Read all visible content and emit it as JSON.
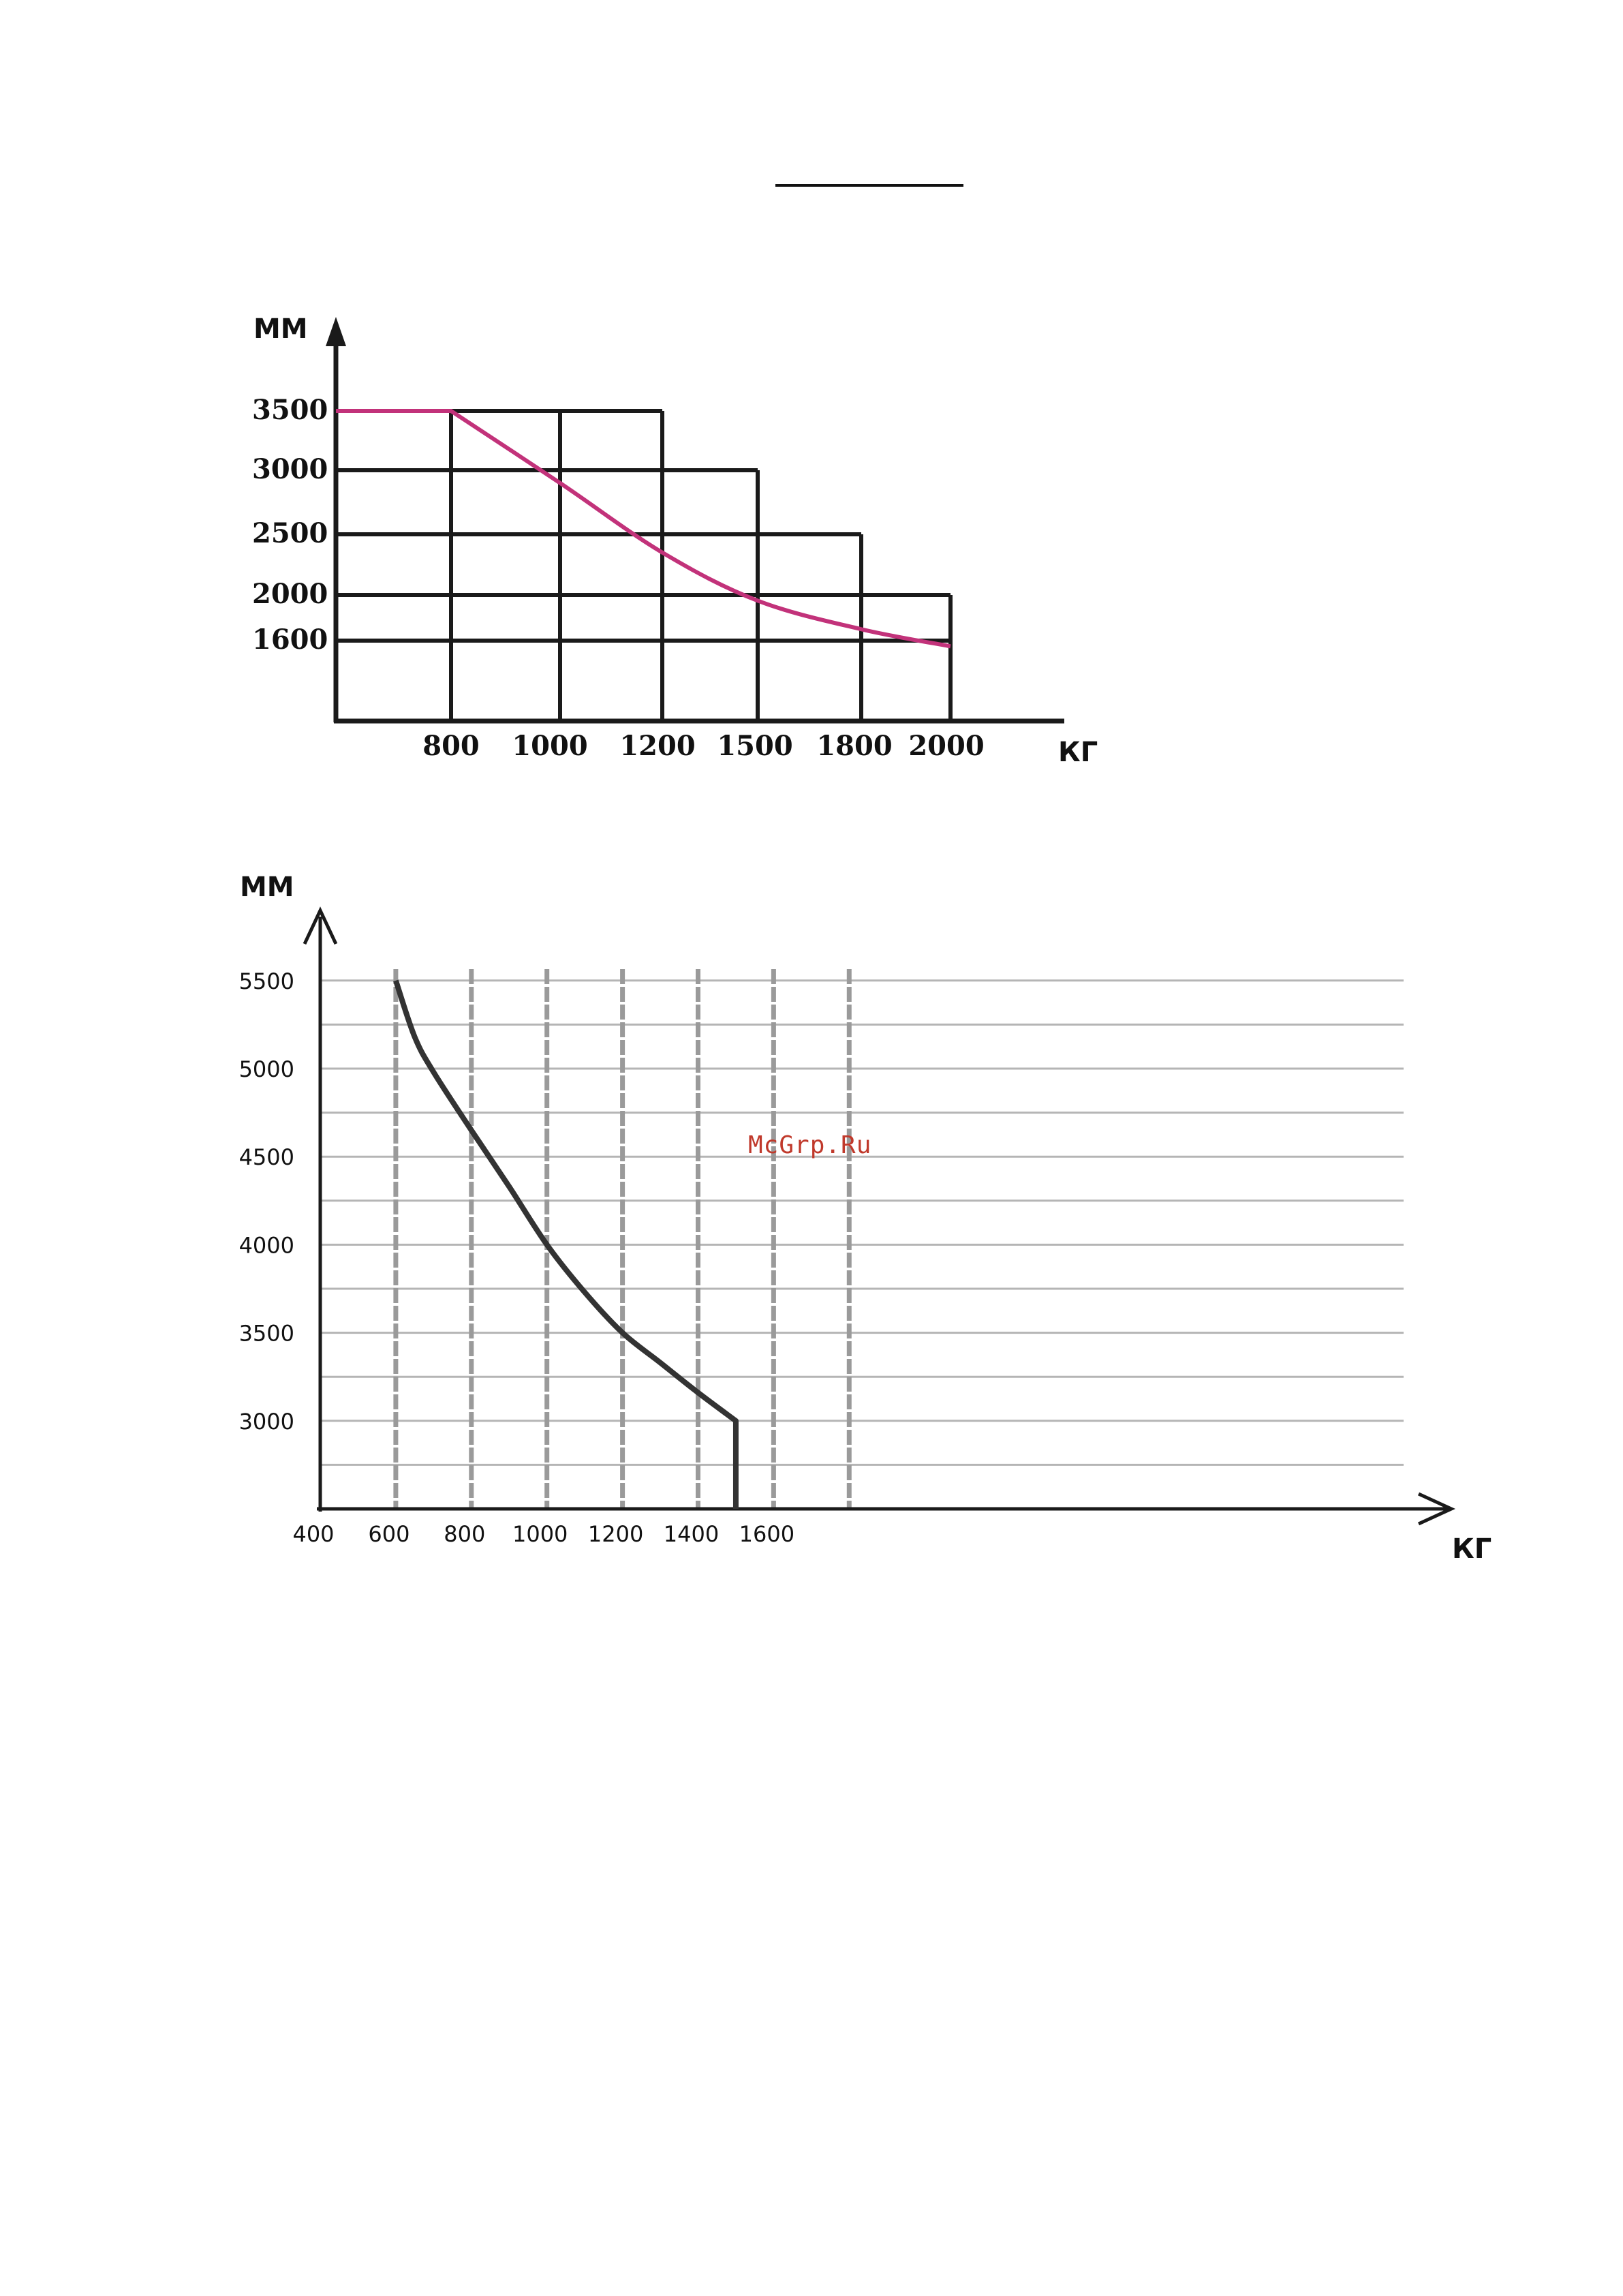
{
  "watermark": "McGrp.Ru",
  "chart_data": [
    {
      "type": "line",
      "ylabel": "ММ",
      "xlabel": "КГ",
      "x_ticks": [
        "800",
        "1000",
        "1200",
        "1500",
        "1800",
        "2000"
      ],
      "y_ticks": [
        "3500",
        "3000",
        "2500",
        "2000",
        "1600"
      ],
      "line_color": "#c2327a",
      "series": [
        {
          "points": [
            {
              "x": "0",
              "y": 3500
            },
            {
              "x": "800",
              "y": 3500
            },
            {
              "x": "1000",
              "y": 2900
            },
            {
              "x": "1200",
              "y": 2350
            },
            {
              "x": "1500",
              "y": 1950
            },
            {
              "x": "1800",
              "y": 1700
            },
            {
              "x": "2000",
              "y": 1550
            }
          ]
        }
      ],
      "grid": true
    },
    {
      "type": "line",
      "ylabel": "ММ",
      "xlabel": "КГ",
      "x_ticks": [
        "400",
        "600",
        "800",
        "1000",
        "1200",
        "1400",
        "1600"
      ],
      "y_ticks": [
        "5500",
        "5000",
        "4500",
        "4000",
        "3500",
        "3000"
      ],
      "xlim": [
        400,
        1800
      ],
      "ylim": [
        2500,
        5500
      ],
      "line_color": "#333333",
      "series": [
        {
          "points": [
            {
              "x": 600,
              "y": 5500
            },
            {
              "x": 650,
              "y": 5180
            },
            {
              "x": 700,
              "y": 4980
            },
            {
              "x": 800,
              "y": 4650
            },
            {
              "x": 900,
              "y": 4330
            },
            {
              "x": 1000,
              "y": 4000
            },
            {
              "x": 1100,
              "y": 3730
            },
            {
              "x": 1200,
              "y": 3500
            },
            {
              "x": 1300,
              "y": 3330
            },
            {
              "x": 1400,
              "y": 3160
            },
            {
              "x": 1500,
              "y": 3000
            },
            {
              "x": 1500,
              "y": 2500
            }
          ]
        }
      ],
      "grid": true
    }
  ]
}
